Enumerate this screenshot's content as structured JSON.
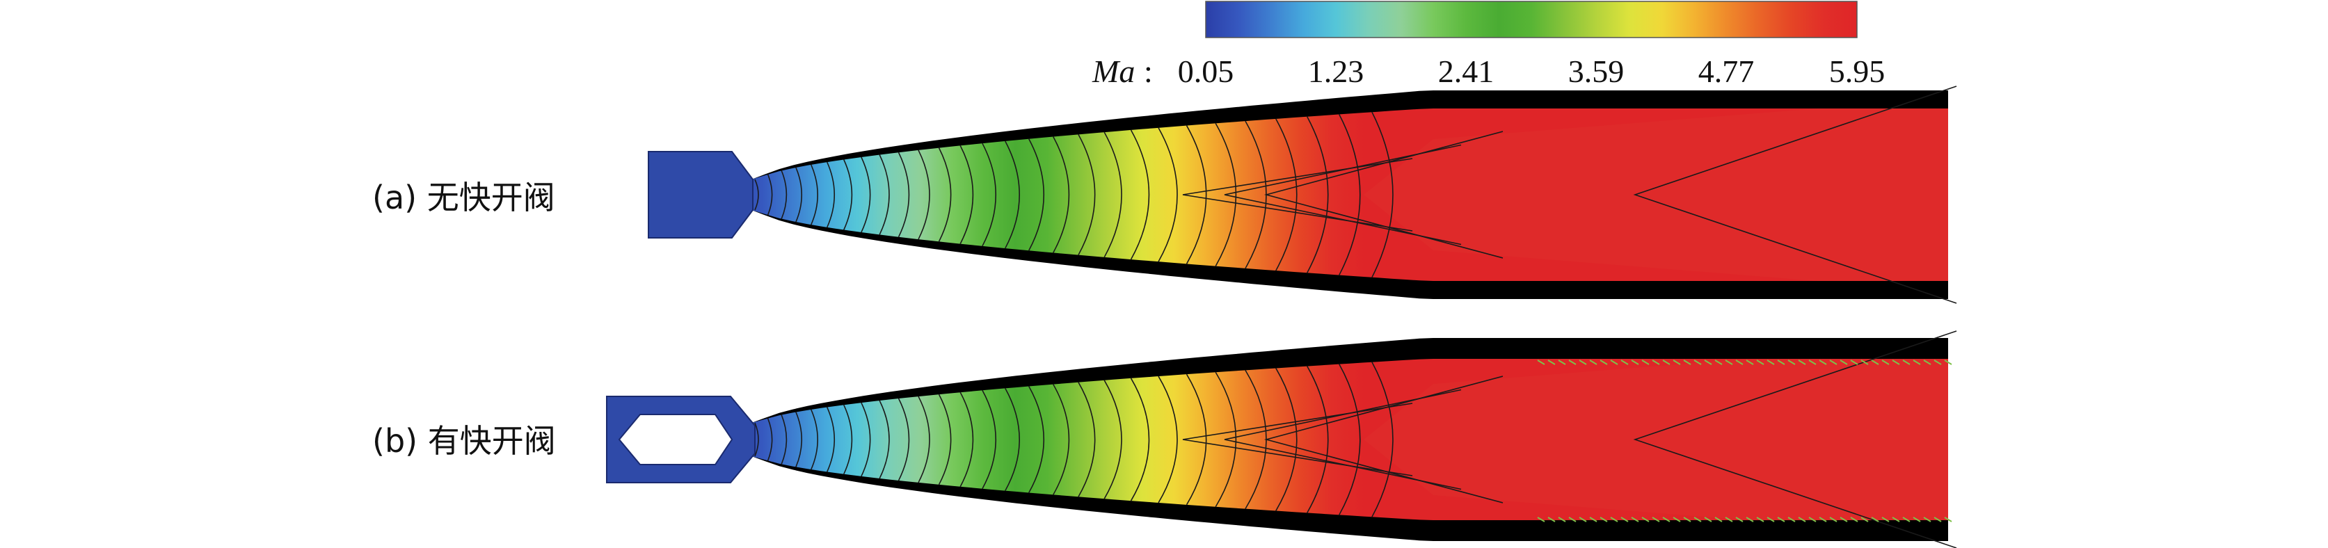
{
  "colorbar": {
    "variable_symbol": "Ma",
    "separator": ":",
    "tick_labels": [
      "0.05",
      "1.23",
      "2.41",
      "3.59",
      "4.77",
      "5.95"
    ],
    "min": 0.05,
    "max": 5.95,
    "colors": [
      "#2b3fa8",
      "#3658bf",
      "#3e7fd0",
      "#46a9dc",
      "#55c6d8",
      "#7acfb8",
      "#8fd098",
      "#78c95c",
      "#5cb93e",
      "#4aac33",
      "#58b535",
      "#86c33a",
      "#b4d33c",
      "#dde33c",
      "#f0d838",
      "#f3b331",
      "#ef8a2b",
      "#ea6528",
      "#e54526",
      "#e12e29",
      "#df2528"
    ]
  },
  "panels": [
    {
      "label": "(a) 无快开阀",
      "has_valve": false
    },
    {
      "label": "(b) 有快开阀",
      "has_valve": true
    }
  ],
  "colors": {
    "subsonic": "#2f4aa8",
    "core": "#df2a2a",
    "boundary_layer": "#000000",
    "contour_line": "#1a1a1a",
    "wall_streak": "#7ec04a"
  }
}
